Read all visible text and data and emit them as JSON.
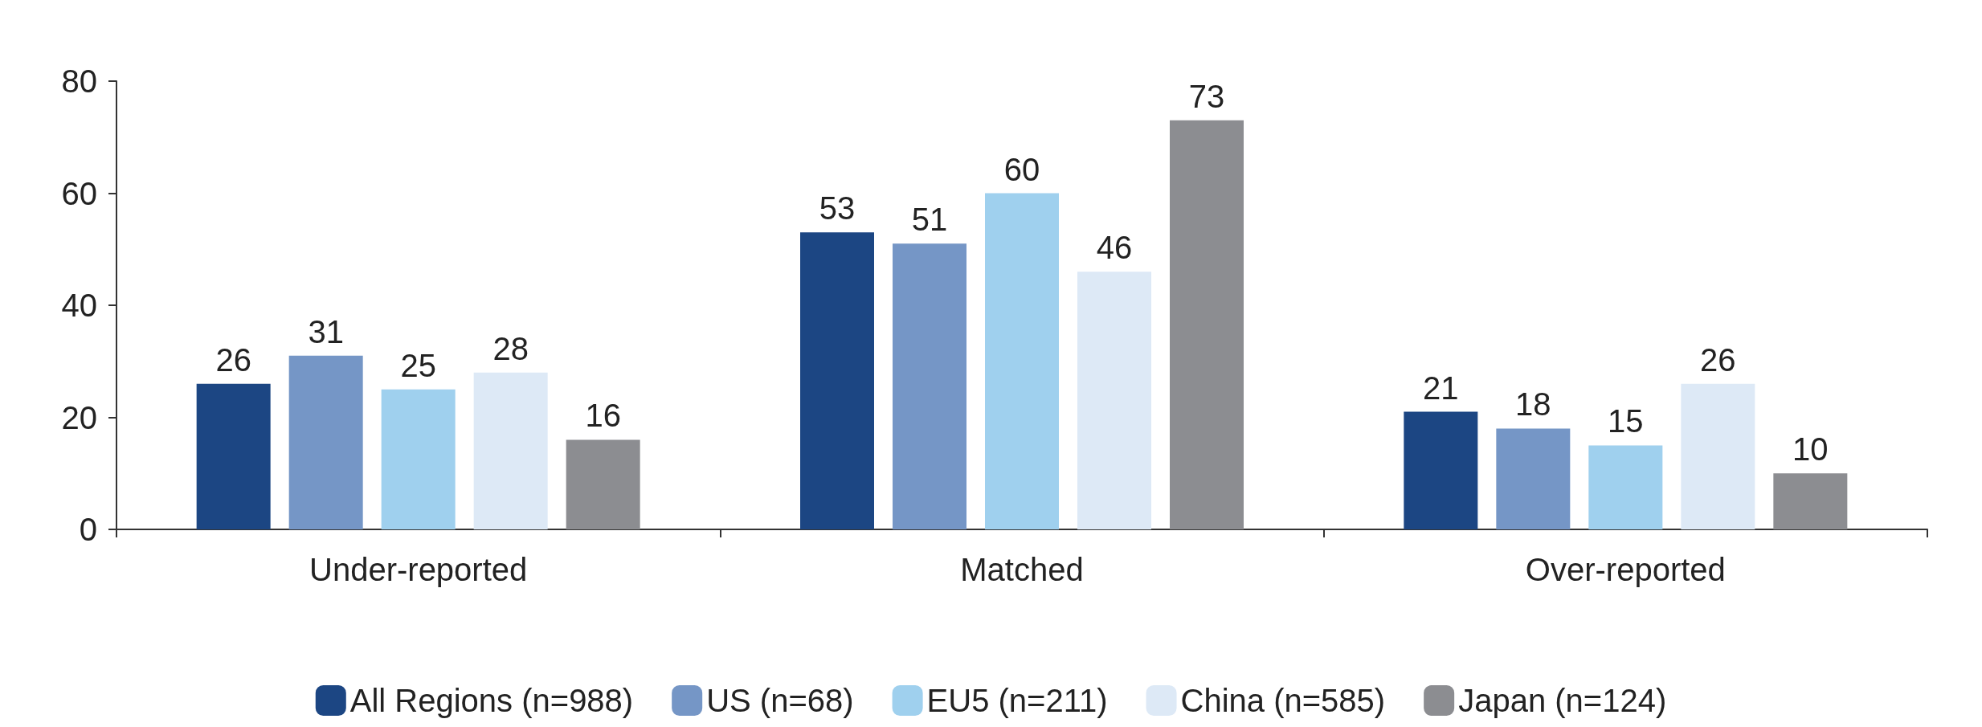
{
  "chart_data": {
    "type": "bar",
    "categories": [
      "Under-reported",
      "Matched",
      "Over-reported"
    ],
    "series": [
      {
        "name": "All Regions (n=988)",
        "color": "#1c4683",
        "values": [
          26,
          53,
          21
        ]
      },
      {
        "name": "US (n=68)",
        "color": "#7596c6",
        "values": [
          31,
          51,
          18
        ]
      },
      {
        "name": "EU5 (n=211)",
        "color": "#9fd0ee",
        "values": [
          25,
          60,
          15
        ]
      },
      {
        "name": "China (n=585)",
        "color": "#dde9f6",
        "values": [
          28,
          46,
          26
        ]
      },
      {
        "name": "Japan (n=124)",
        "color": "#8c8d91",
        "values": [
          16,
          73,
          10
        ]
      }
    ],
    "ylim": [
      0,
      80
    ],
    "yticks": [
      0,
      20,
      40,
      60,
      80
    ],
    "grid": false,
    "legend": "bottom",
    "data_labels": true
  }
}
